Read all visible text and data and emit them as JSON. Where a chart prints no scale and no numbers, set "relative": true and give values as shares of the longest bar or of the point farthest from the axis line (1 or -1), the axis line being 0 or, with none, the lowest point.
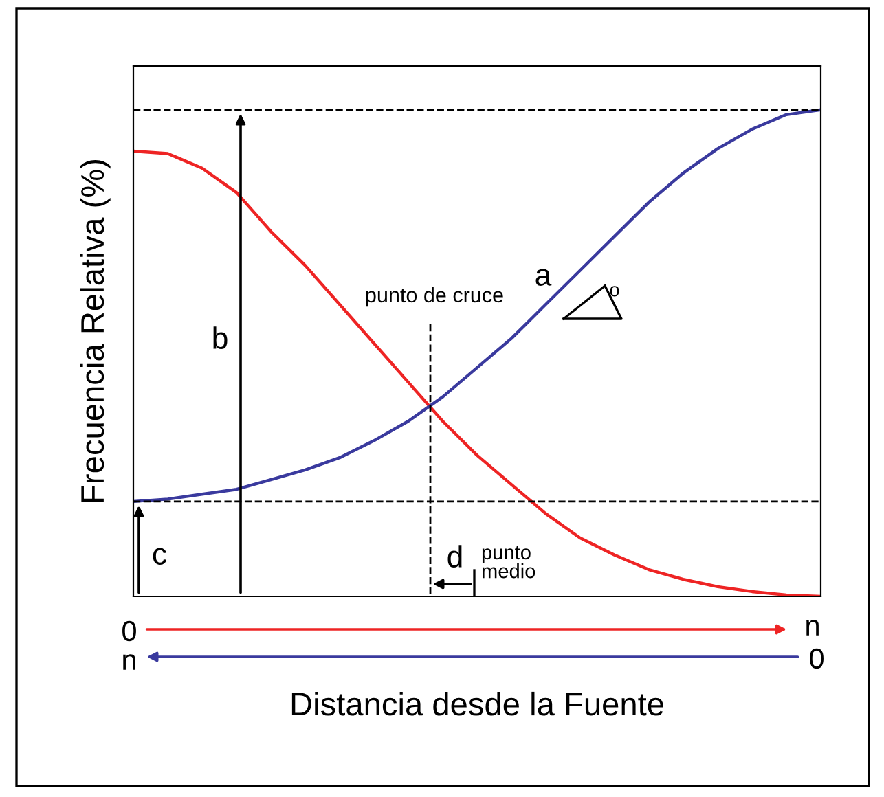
{
  "chart_data": {
    "type": "line",
    "relative": true,
    "xlabel": "Distancia desde la Fuente",
    "ylabel": "Frecuencia Relativa (%)",
    "categories": [
      null,
      null,
      null,
      null,
      null,
      null,
      null,
      null,
      null,
      null,
      null,
      null,
      null,
      null,
      null,
      null,
      null,
      null,
      null,
      null,
      null
    ],
    "series": [
      {
        "color": "#ee2424",
        "values": [
          0.915,
          0.91,
          0.88,
          0.83,
          0.75,
          0.68,
          0.6,
          0.52,
          0.44,
          0.36,
          0.29,
          0.23,
          0.17,
          0.12,
          0.085,
          0.055,
          0.035,
          0.02,
          0.01,
          0.003,
          0
        ]
      },
      {
        "color": "#3a3a9e",
        "values": [
          0.195,
          0.2,
          0.21,
          0.22,
          0.24,
          0.26,
          0.285,
          0.32,
          0.36,
          0.41,
          0.47,
          0.53,
          0.6,
          0.67,
          0.74,
          0.81,
          0.87,
          0.92,
          0.96,
          0.99,
          1.0
        ]
      }
    ],
    "ref_lines": [
      {
        "axis": "y",
        "value": 1.0,
        "line_style": "dashed",
        "color": "#000000"
      },
      {
        "axis": "y",
        "value": 0.195,
        "line_style": "dashed",
        "color": "#000000"
      }
    ],
    "annotations": [
      "a",
      "b",
      "c",
      "d",
      "punto de cruce",
      "punto\nmedio",
      "o",
      "0",
      "n",
      "n",
      "0"
    ],
    "legend": false,
    "marker": "none",
    "line_style": "solid"
  }
}
